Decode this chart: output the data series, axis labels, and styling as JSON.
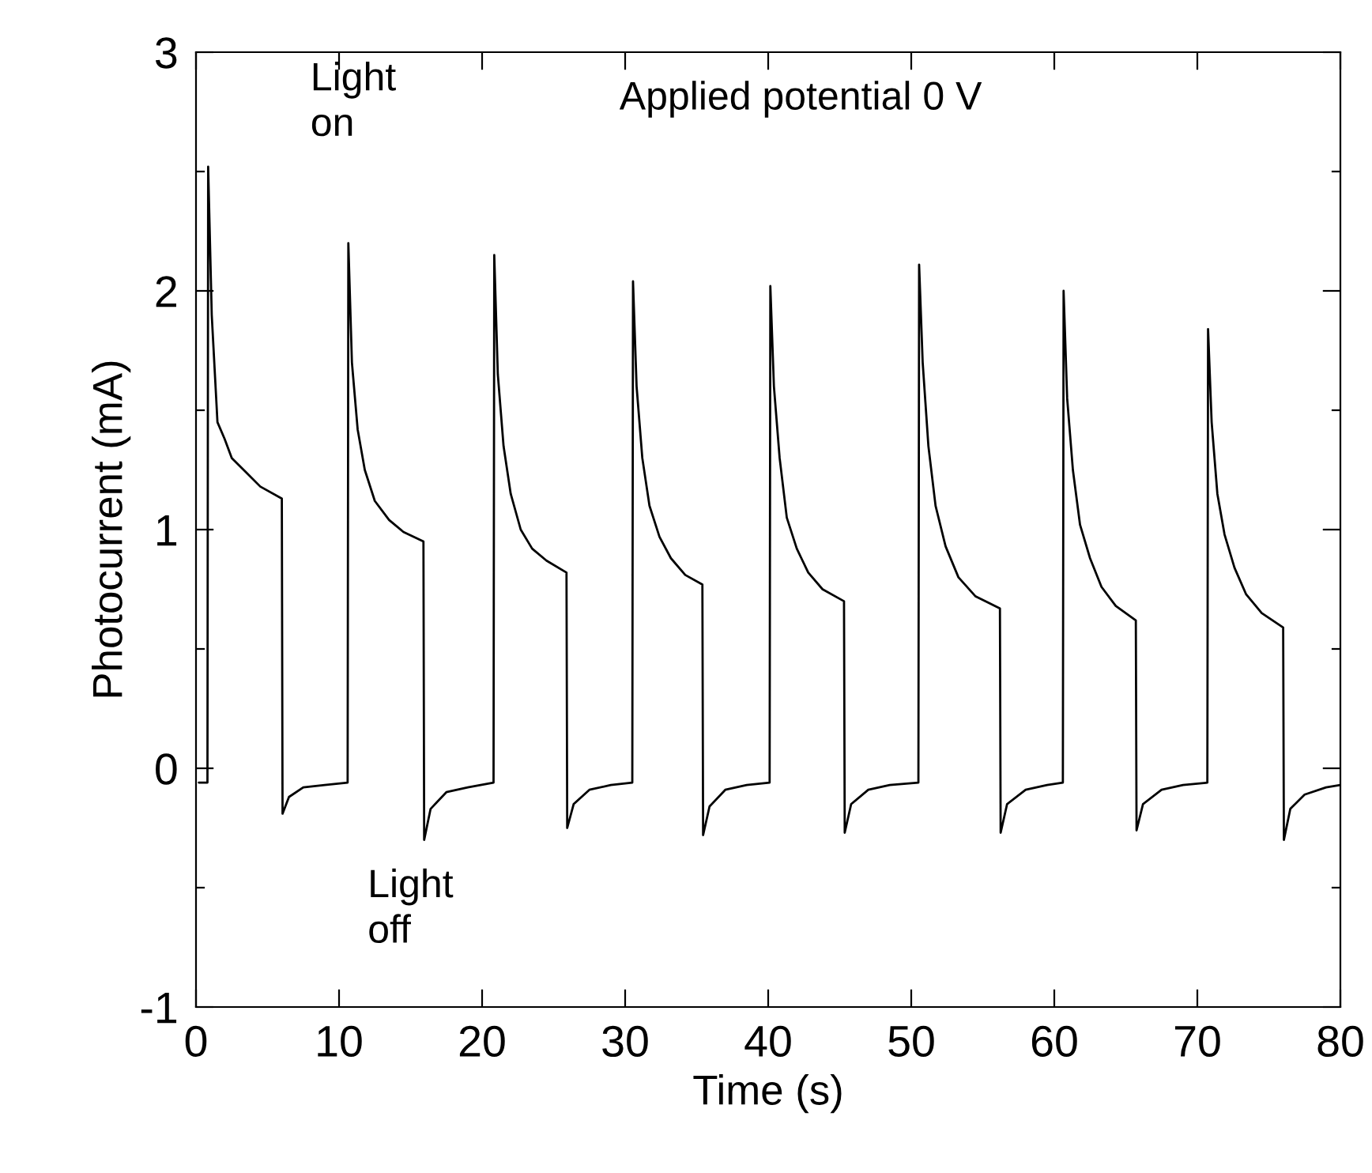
{
  "chart_data": {
    "type": "line",
    "xlabel": "Time (s)",
    "ylabel": "Photocurrent (mA)",
    "xlim": [
      0,
      80
    ],
    "xticks": [
      0,
      10,
      20,
      30,
      40,
      50,
      60,
      70,
      80
    ],
    "ylim": [
      -1,
      3
    ],
    "yticks": [
      -1,
      {
        "value": -0.5,
        "label": null
      },
      0,
      {
        "value": 0.5,
        "label": null
      },
      1,
      {
        "value": 1.5,
        "label": null
      },
      2,
      {
        "value": 2.5,
        "label": null
      },
      3
    ],
    "grid": false,
    "legend": false,
    "marker": "none",
    "line_style": "solid",
    "annotations": [
      "Light\non",
      "Light\noff",
      "Applied potential 0 V"
    ],
    "series": [
      {
        "color": "#000000",
        "x": [
          0.2,
          0.8,
          0.85,
          1.1,
          1.5,
          2.0,
          2.5,
          3.5,
          4.5,
          6.0,
          6.05,
          6.5,
          7.5,
          9.0,
          10.6,
          10.65,
          10.9,
          11.3,
          11.8,
          12.5,
          13.5,
          14.5,
          15.9,
          15.95,
          16.4,
          17.5,
          19.0,
          20.8,
          20.85,
          21.1,
          21.5,
          22.0,
          22.7,
          23.5,
          24.5,
          25.9,
          25.95,
          26.4,
          27.5,
          29.0,
          30.5,
          30.55,
          30.8,
          31.2,
          31.7,
          32.4,
          33.2,
          34.2,
          35.4,
          35.45,
          35.9,
          37.0,
          38.5,
          40.1,
          40.15,
          40.4,
          40.8,
          41.3,
          42.0,
          42.8,
          43.8,
          45.3,
          45.35,
          45.8,
          47.0,
          48.5,
          50.5,
          50.55,
          50.8,
          51.2,
          51.7,
          52.4,
          53.3,
          54.5,
          56.2,
          56.25,
          56.7,
          58.0,
          59.5,
          60.6,
          60.65,
          60.9,
          61.3,
          61.8,
          62.5,
          63.3,
          64.3,
          65.7,
          65.75,
          66.2,
          67.5,
          69.0,
          70.7,
          70.75,
          71.0,
          71.4,
          71.9,
          72.6,
          73.4,
          74.5,
          76.0,
          76.05,
          76.5,
          77.5,
          79.0,
          80.0
        ],
        "values": [
          -0.06,
          -0.06,
          2.52,
          1.9,
          1.45,
          1.38,
          1.3,
          1.24,
          1.18,
          1.13,
          -0.19,
          -0.12,
          -0.08,
          -0.07,
          -0.06,
          2.2,
          1.7,
          1.42,
          1.25,
          1.12,
          1.04,
          0.99,
          0.95,
          -0.3,
          -0.17,
          -0.1,
          -0.08,
          -0.06,
          2.15,
          1.65,
          1.35,
          1.15,
          1.0,
          0.92,
          0.87,
          0.82,
          -0.25,
          -0.15,
          -0.09,
          -0.07,
          -0.06,
          2.04,
          1.6,
          1.3,
          1.1,
          0.97,
          0.88,
          0.81,
          0.77,
          -0.28,
          -0.16,
          -0.09,
          -0.07,
          -0.06,
          2.02,
          1.6,
          1.3,
          1.05,
          0.92,
          0.82,
          0.75,
          0.7,
          -0.27,
          -0.15,
          -0.09,
          -0.07,
          -0.06,
          2.11,
          1.7,
          1.35,
          1.1,
          0.93,
          0.8,
          0.72,
          0.67,
          -0.27,
          -0.15,
          -0.09,
          -0.07,
          -0.06,
          2.0,
          1.55,
          1.25,
          1.02,
          0.88,
          0.76,
          0.68,
          0.62,
          -0.26,
          -0.15,
          -0.09,
          -0.07,
          -0.06,
          1.84,
          1.45,
          1.15,
          0.98,
          0.84,
          0.73,
          0.65,
          0.59,
          -0.3,
          -0.17,
          -0.11,
          -0.08,
          -0.07
        ]
      }
    ]
  }
}
